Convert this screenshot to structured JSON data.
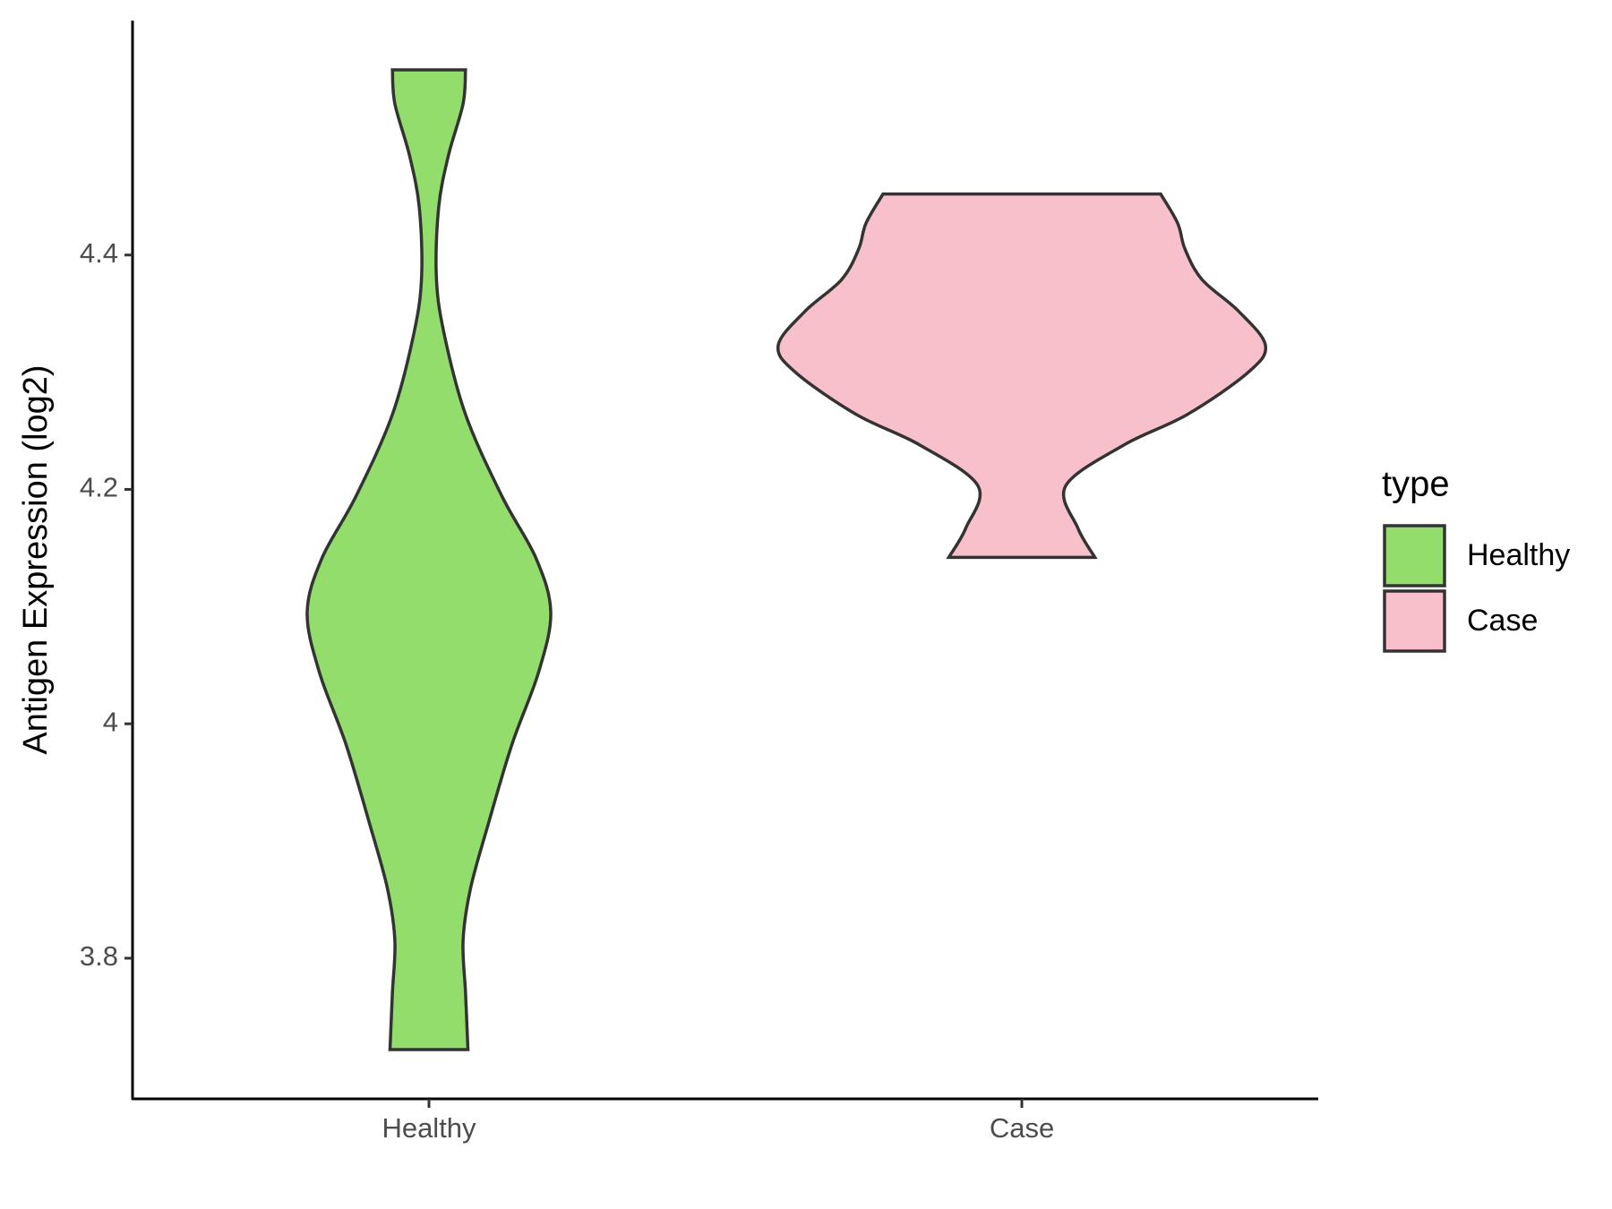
{
  "chart_data": {
    "type": "violin",
    "y_label": "Antigen Expression (log2)",
    "categories": [
      "Healthy",
      "Case"
    ],
    "ylim": [
      3.68,
      4.6
    ],
    "yticks": [
      3.8,
      4.0,
      4.2,
      4.4
    ],
    "legend_title": "type",
    "legend": "right",
    "series": [
      {
        "name": "Healthy",
        "color": "#93dd6c",
        "y": [
          4.558,
          4.529,
          4.485,
          4.441,
          4.383,
          4.335,
          4.264,
          4.194,
          4.141,
          4.095,
          4.044,
          3.982,
          3.912,
          3.859,
          3.815,
          3.771,
          3.722
        ],
        "density": [
          0.15,
          0.14,
          0.08,
          0.04,
          0.03,
          0.06,
          0.15,
          0.3,
          0.44,
          0.5,
          0.45,
          0.34,
          0.24,
          0.17,
          0.14,
          0.15,
          0.16
        ]
      },
      {
        "name": "Case",
        "color": "#f7c0cb",
        "y": [
          4.452,
          4.427,
          4.405,
          4.379,
          4.352,
          4.323,
          4.3,
          4.264,
          4.238,
          4.203,
          4.167,
          4.142
        ],
        "density": [
          0.57,
          0.64,
          0.67,
          0.74,
          0.89,
          1.0,
          0.93,
          0.68,
          0.42,
          0.18,
          0.23,
          0.3
        ]
      }
    ]
  }
}
